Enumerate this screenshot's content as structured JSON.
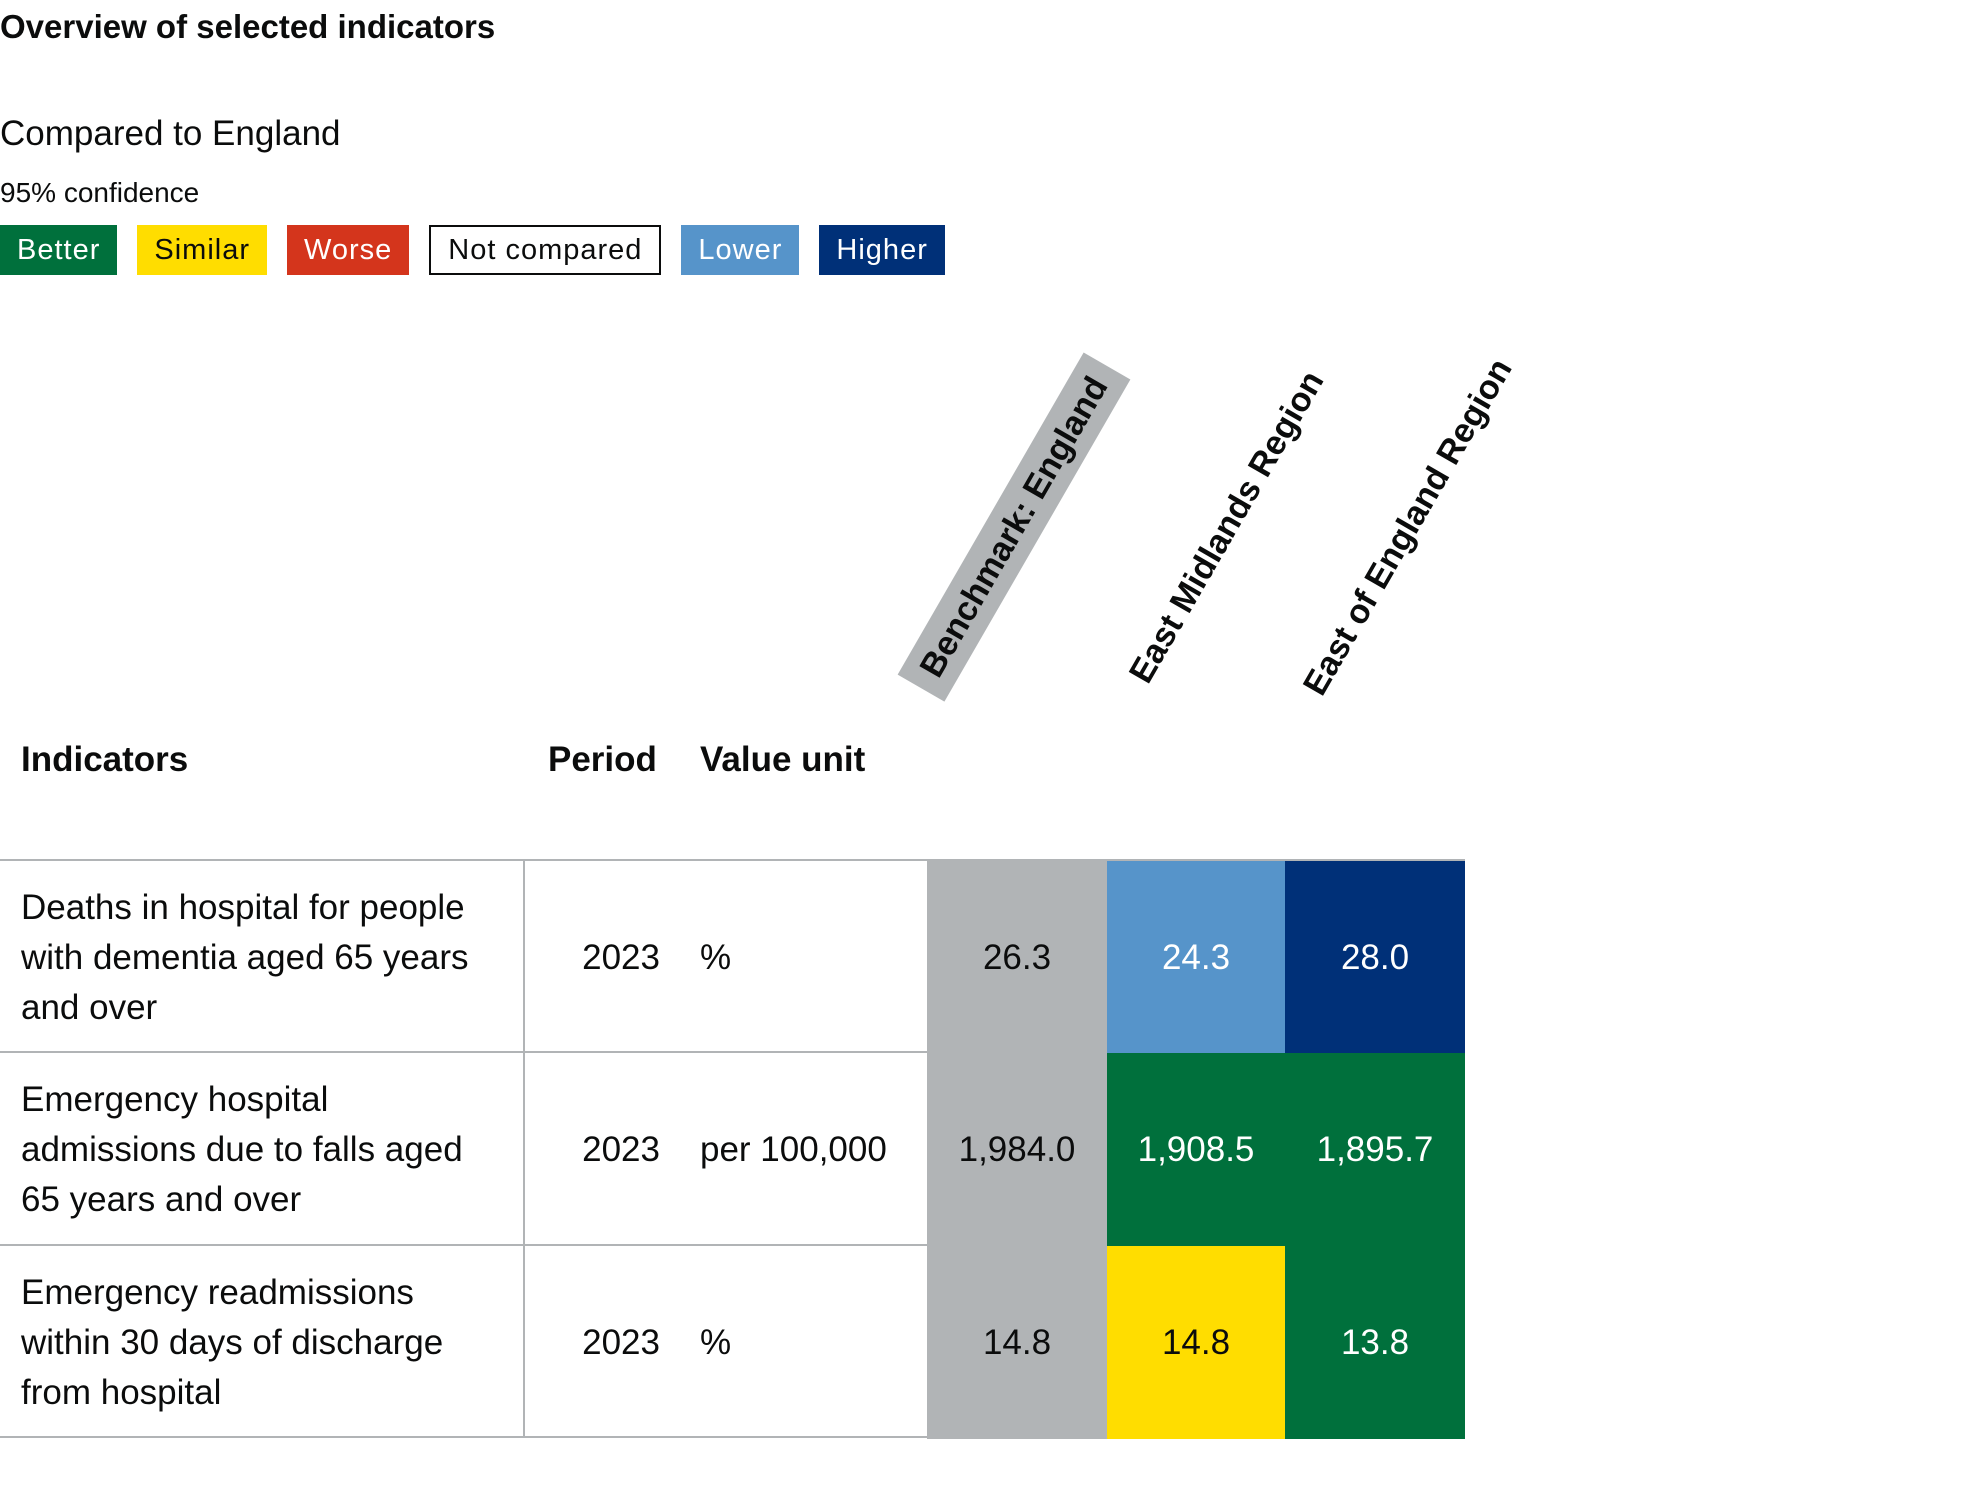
{
  "title": "Overview of selected indicators",
  "compare_heading": "Compared to England",
  "confidence": "95% confidence",
  "legend": [
    {
      "key": "better",
      "label": "Better",
      "color": "#00703c"
    },
    {
      "key": "similar",
      "label": "Similar",
      "color": "#ffdd00"
    },
    {
      "key": "worse",
      "label": "Worse",
      "color": "#d4351c"
    },
    {
      "key": "notcompared",
      "label": "Not compared",
      "color": "#ffffff"
    },
    {
      "key": "lower",
      "label": "Lower",
      "color": "#5694ca"
    },
    {
      "key": "higher",
      "label": "Higher",
      "color": "#003078"
    }
  ],
  "table": {
    "headers": {
      "indicators": "Indicators",
      "period": "Period",
      "value_unit": "Value unit"
    },
    "area_headers": [
      "Benchmark: England",
      "East Midlands Region",
      "East of England Region"
    ]
  },
  "chart_data": {
    "type": "table",
    "columns": [
      "Indicators",
      "Period",
      "Value unit",
      "Benchmark: England",
      "East Midlands Region",
      "East of England Region"
    ],
    "rows": [
      {
        "indicator": "Deaths in hospital for people with dementia aged 65 years and over",
        "period": "2023",
        "unit": "%",
        "values": [
          "26.3",
          "24.3",
          "28.0"
        ],
        "status": [
          "benchmark",
          "lower",
          "higher"
        ]
      },
      {
        "indicator": "Emergency hospital admissions due to falls aged 65 years and over",
        "period": "2023",
        "unit": "per 100,000",
        "values": [
          "1,984.0",
          "1,908.5",
          "1,895.7"
        ],
        "status": [
          "benchmark",
          "better",
          "better"
        ]
      },
      {
        "indicator": "Emergency readmissions within 30 days of discharge from hospital",
        "period": "2023",
        "unit": "%",
        "values": [
          "14.8",
          "14.8",
          "13.8"
        ],
        "status": [
          "benchmark",
          "similar",
          "better"
        ]
      }
    ],
    "status_colors": {
      "benchmark": "#b1b4b6",
      "better": "#00703c",
      "similar": "#ffdd00",
      "worse": "#d4351c",
      "lower": "#5694ca",
      "higher": "#003078"
    }
  }
}
